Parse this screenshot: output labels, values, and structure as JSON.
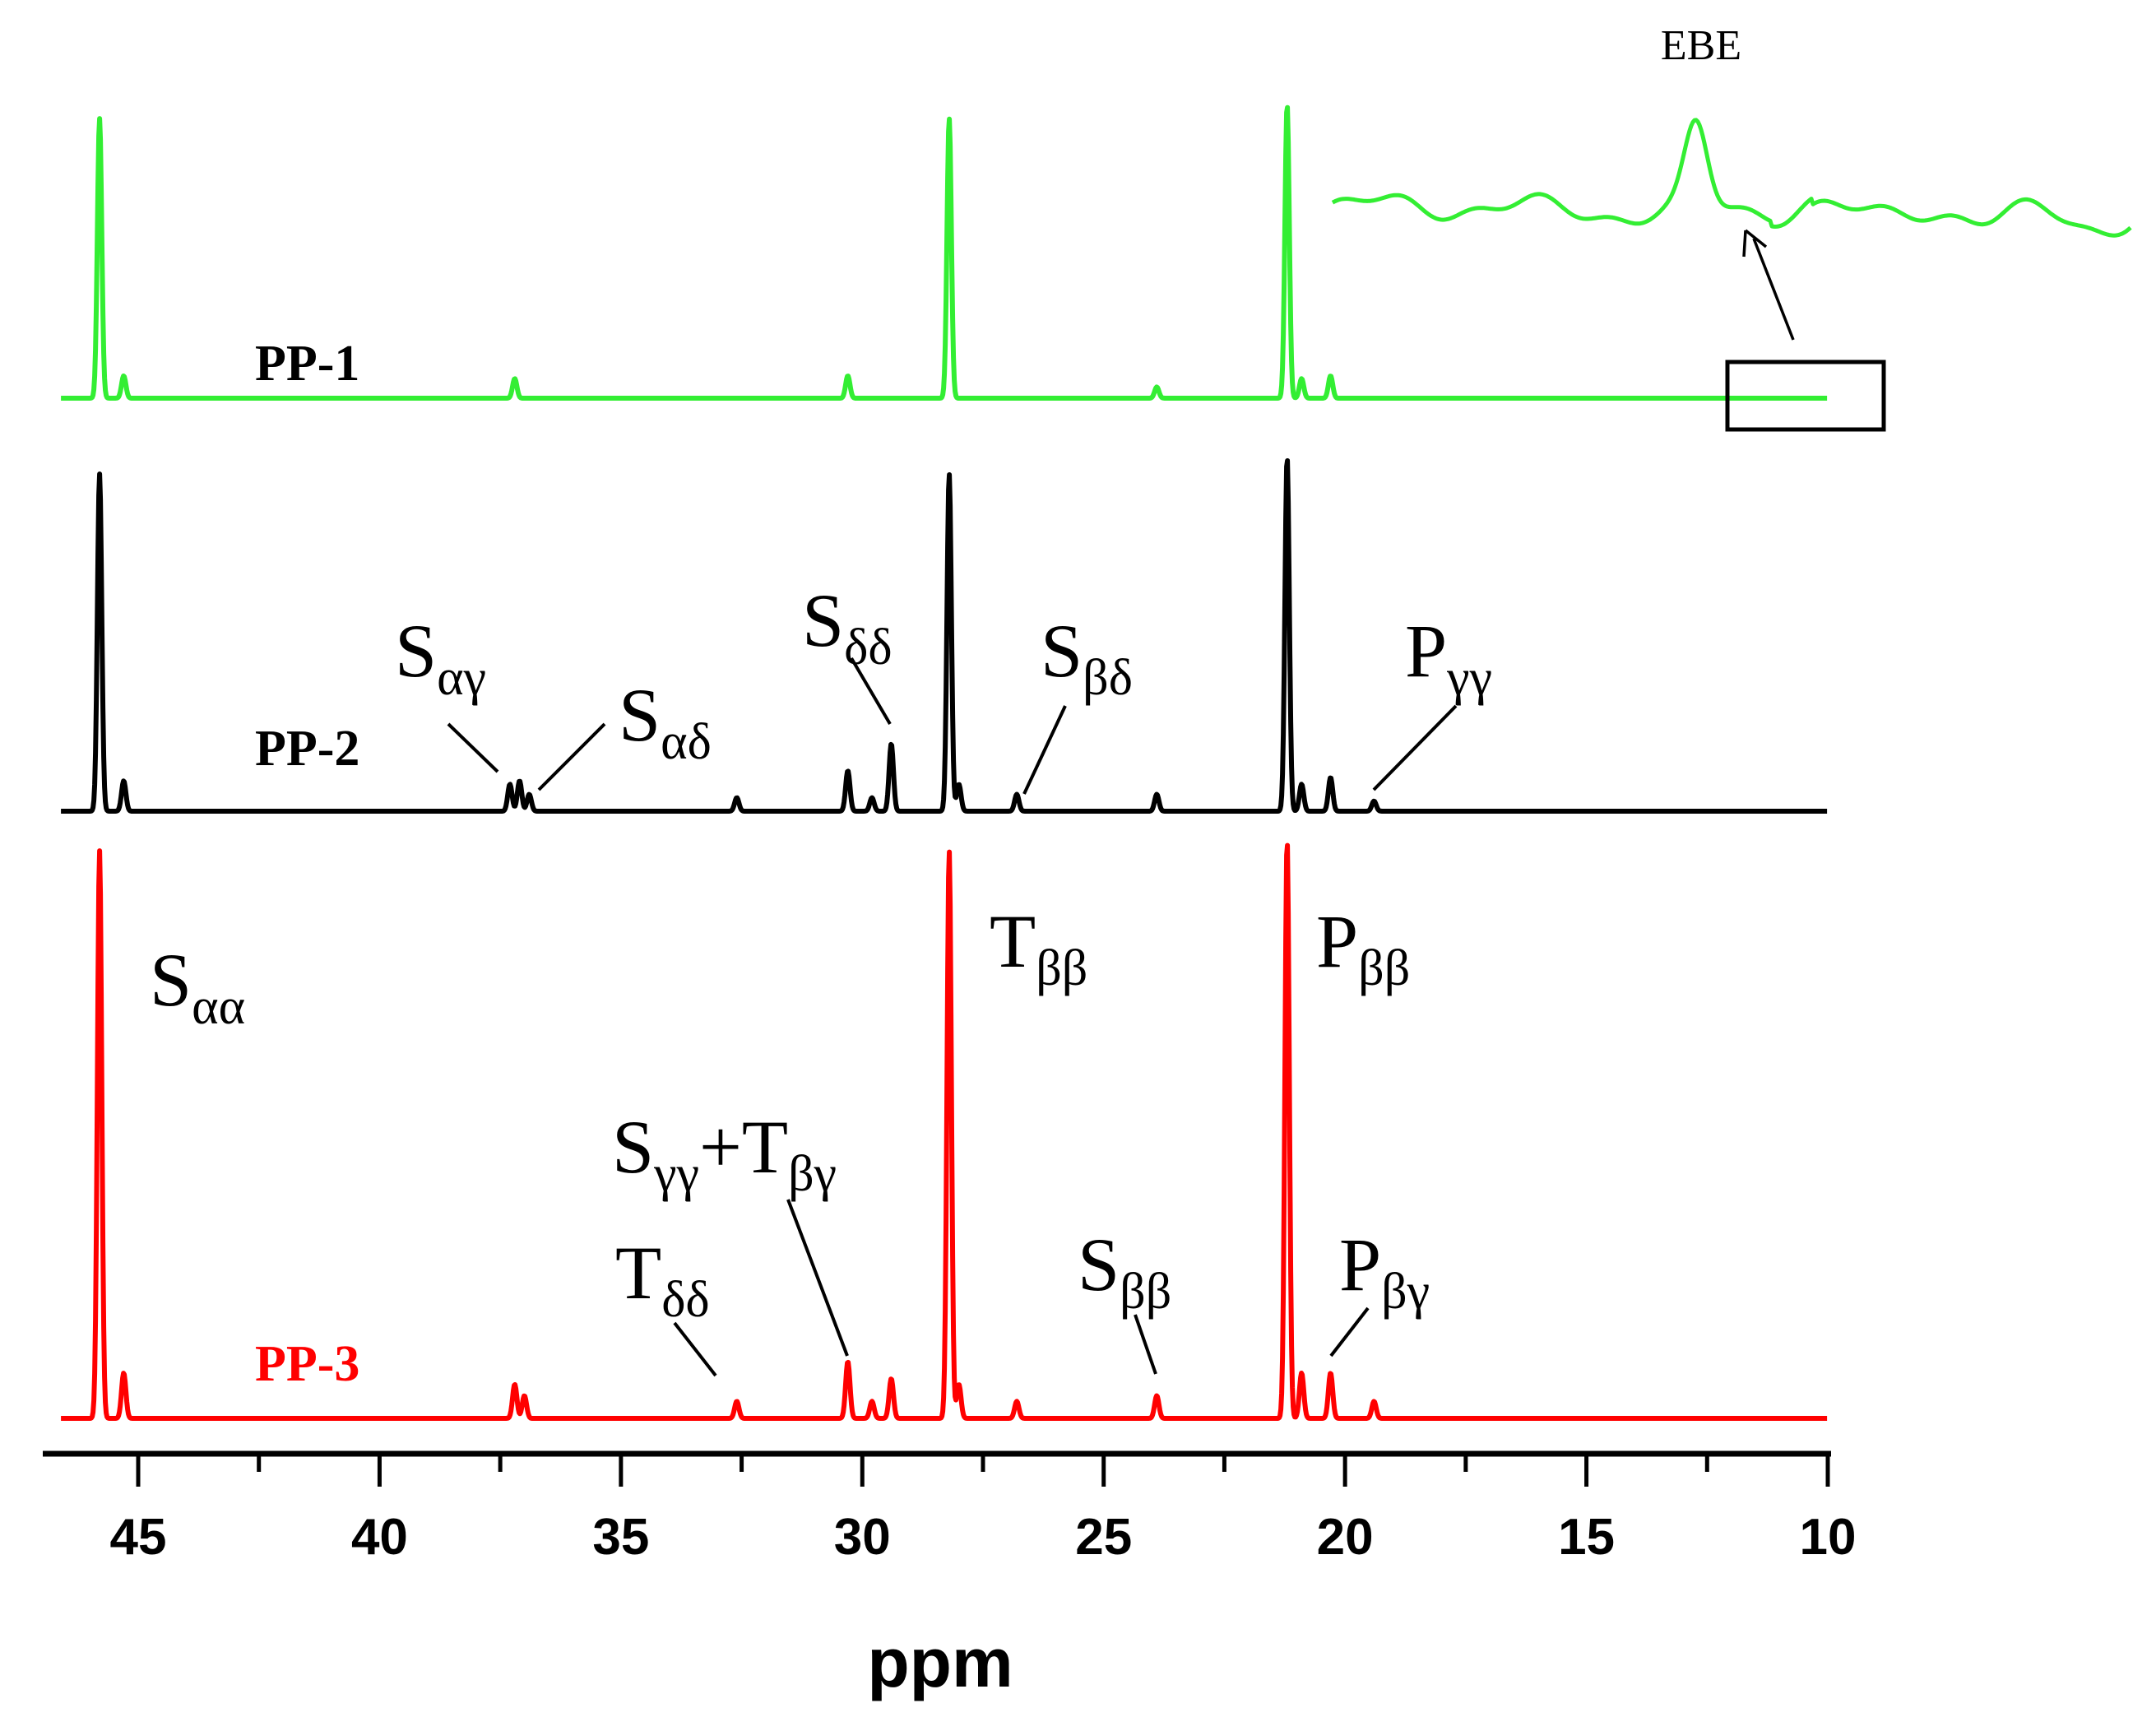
{
  "chart_data": {
    "type": "line",
    "xlabel": "ppm",
    "xlim": [
      47,
      10
    ],
    "x_ticks": [
      45,
      40,
      35,
      30,
      25,
      20,
      15,
      10
    ],
    "series": [
      {
        "name": "PP-1",
        "color": "#33ee33",
        "peaks": [
          {
            "x": 45.8,
            "h": 1.0
          },
          {
            "x": 45.3,
            "h": 0.08
          },
          {
            "x": 37.2,
            "h": 0.07
          },
          {
            "x": 30.3,
            "h": 0.08
          },
          {
            "x": 28.2,
            "h": 1.0
          },
          {
            "x": 23.9,
            "h": 0.04
          },
          {
            "x": 21.2,
            "h": 1.05
          },
          {
            "x": 20.9,
            "h": 0.07
          },
          {
            "x": 20.3,
            "h": 0.08
          }
        ]
      },
      {
        "name": "PP-2",
        "color": "#000000",
        "peaks": [
          {
            "x": 45.8,
            "h": 1.0
          },
          {
            "x": 45.3,
            "h": 0.09
          },
          {
            "x": 37.3,
            "h": 0.08
          },
          {
            "x": 37.1,
            "h": 0.09
          },
          {
            "x": 36.9,
            "h": 0.05
          },
          {
            "x": 32.6,
            "h": 0.04
          },
          {
            "x": 30.3,
            "h": 0.12
          },
          {
            "x": 29.8,
            "h": 0.04
          },
          {
            "x": 29.4,
            "h": 0.2
          },
          {
            "x": 28.2,
            "h": 1.0
          },
          {
            "x": 28.0,
            "h": 0.08
          },
          {
            "x": 26.8,
            "h": 0.05
          },
          {
            "x": 23.9,
            "h": 0.05
          },
          {
            "x": 21.2,
            "h": 1.05
          },
          {
            "x": 20.9,
            "h": 0.08
          },
          {
            "x": 20.3,
            "h": 0.1
          },
          {
            "x": 19.4,
            "h": 0.03
          }
        ]
      },
      {
        "name": "PP-3",
        "color": "#ff0000",
        "peaks": [
          {
            "x": 45.8,
            "h": 1.0
          },
          {
            "x": 45.3,
            "h": 0.08
          },
          {
            "x": 37.2,
            "h": 0.06
          },
          {
            "x": 37.0,
            "h": 0.04
          },
          {
            "x": 32.6,
            "h": 0.03
          },
          {
            "x": 30.3,
            "h": 0.1
          },
          {
            "x": 29.8,
            "h": 0.03
          },
          {
            "x": 29.4,
            "h": 0.07
          },
          {
            "x": 28.2,
            "h": 1.0
          },
          {
            "x": 28.0,
            "h": 0.06
          },
          {
            "x": 26.8,
            "h": 0.03
          },
          {
            "x": 23.9,
            "h": 0.04
          },
          {
            "x": 21.2,
            "h": 1.02
          },
          {
            "x": 20.9,
            "h": 0.08
          },
          {
            "x": 20.3,
            "h": 0.08
          },
          {
            "x": 19.4,
            "h": 0.03
          }
        ]
      }
    ],
    "annotations": [
      {
        "series": "PP-2",
        "main": "S",
        "sub": "αγ",
        "x": 37.3
      },
      {
        "series": "PP-2",
        "main": "S",
        "sub": "αδ",
        "x": 36.9
      },
      {
        "series": "PP-2",
        "main": "S",
        "sub": "δδ",
        "x": 29.4
      },
      {
        "series": "PP-2",
        "main": "S",
        "sub": "βδ",
        "x": 26.8
      },
      {
        "series": "PP-2",
        "main": "P",
        "sub": "γγ",
        "x": 19.4
      },
      {
        "series": "PP-3",
        "main": "S",
        "sub": "αα",
        "x": 45.8
      },
      {
        "series": "PP-3",
        "main": "T",
        "sub": "ββ",
        "x": 28.2
      },
      {
        "series": "PP-3",
        "main": "P",
        "sub": "ββ",
        "x": 21.2
      },
      {
        "series": "PP-3",
        "main": "S",
        "sub": "γγ",
        "main2": "+T",
        "sub2": "βγ",
        "x": 30.3
      },
      {
        "series": "PP-3",
        "main": "T",
        "sub": "δδ",
        "x": 32.6
      },
      {
        "series": "PP-3",
        "main": "S",
        "sub": "ββ",
        "x": 23.9
      },
      {
        "series": "PP-3",
        "main": "P",
        "sub": "βγ",
        "x": 20.3
      }
    ],
    "inset": {
      "label": "EBE",
      "series": "PP-1",
      "x_range": [
        12.2,
        9.0
      ],
      "peak_x": 10.6
    }
  }
}
